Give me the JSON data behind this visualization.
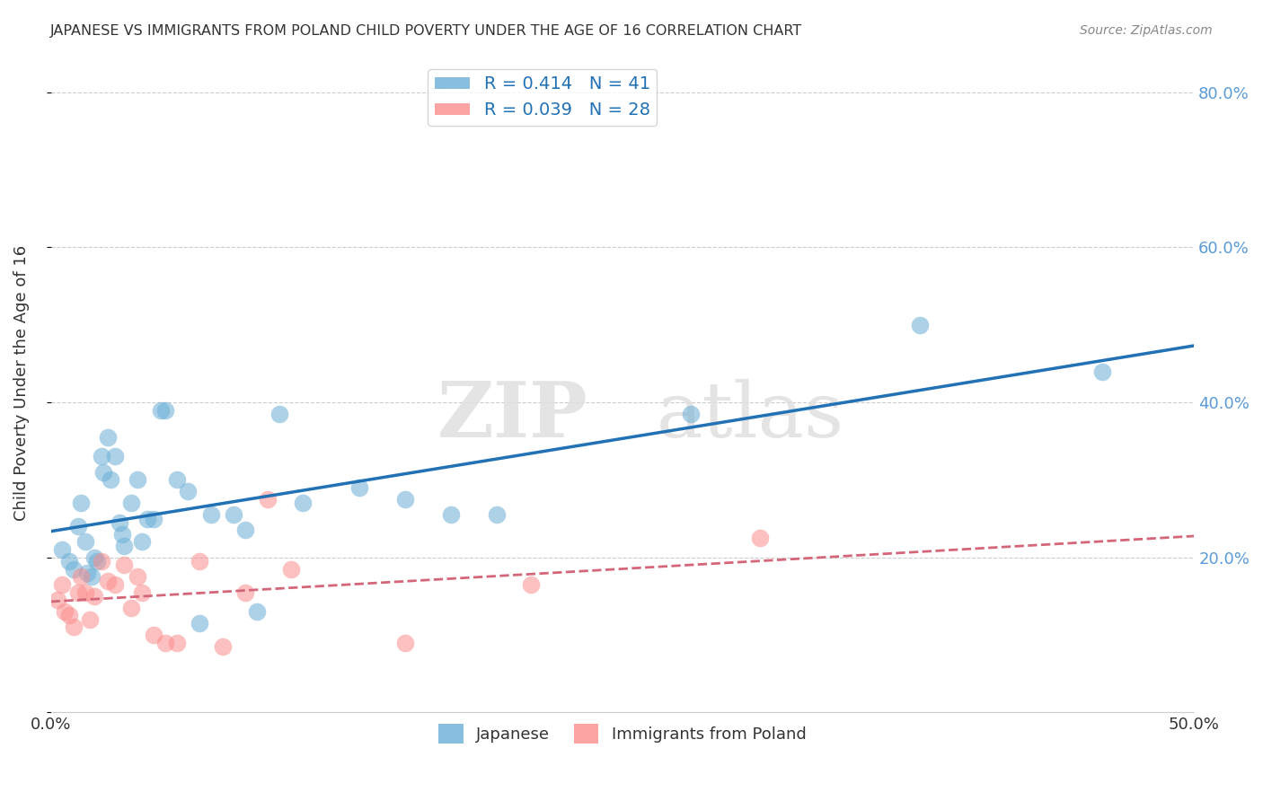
{
  "title": "JAPANESE VS IMMIGRANTS FROM POLAND CHILD POVERTY UNDER THE AGE OF 16 CORRELATION CHART",
  "source": "Source: ZipAtlas.com",
  "ylabel": "Child Poverty Under the Age of 16",
  "xlim": [
    0.0,
    0.5
  ],
  "ylim": [
    0.0,
    0.85
  ],
  "blue_color": "#6baed6",
  "pink_color": "#fc8d8d",
  "blue_line_color": "#2171b5",
  "pink_line_color": "#d4667a",
  "japanese_x": [
    0.005,
    0.008,
    0.01,
    0.012,
    0.013,
    0.015,
    0.016,
    0.018,
    0.019,
    0.02,
    0.022,
    0.023,
    0.025,
    0.026,
    0.028,
    0.03,
    0.031,
    0.032,
    0.035,
    0.038,
    0.04,
    0.042,
    0.045,
    0.048,
    0.05,
    0.055,
    0.06,
    0.065,
    0.07,
    0.08,
    0.085,
    0.09,
    0.1,
    0.11,
    0.135,
    0.155,
    0.175,
    0.195,
    0.28,
    0.38,
    0.46
  ],
  "japanese_y": [
    0.21,
    0.195,
    0.185,
    0.24,
    0.27,
    0.22,
    0.18,
    0.175,
    0.2,
    0.195,
    0.33,
    0.31,
    0.355,
    0.3,
    0.33,
    0.245,
    0.23,
    0.215,
    0.27,
    0.3,
    0.22,
    0.25,
    0.25,
    0.39,
    0.39,
    0.3,
    0.285,
    0.115,
    0.255,
    0.255,
    0.235,
    0.13,
    0.385,
    0.27,
    0.29,
    0.275,
    0.255,
    0.255,
    0.385,
    0.5,
    0.44
  ],
  "poland_x": [
    0.003,
    0.005,
    0.006,
    0.008,
    0.01,
    0.012,
    0.013,
    0.015,
    0.017,
    0.019,
    0.022,
    0.025,
    0.028,
    0.032,
    0.035,
    0.038,
    0.04,
    0.045,
    0.05,
    0.055,
    0.065,
    0.075,
    0.085,
    0.095,
    0.105,
    0.155,
    0.21,
    0.31
  ],
  "poland_y": [
    0.145,
    0.165,
    0.13,
    0.125,
    0.11,
    0.155,
    0.175,
    0.155,
    0.12,
    0.15,
    0.195,
    0.17,
    0.165,
    0.19,
    0.135,
    0.175,
    0.155,
    0.1,
    0.09,
    0.09,
    0.195,
    0.085,
    0.155,
    0.275,
    0.185,
    0.09,
    0.165,
    0.225
  ]
}
